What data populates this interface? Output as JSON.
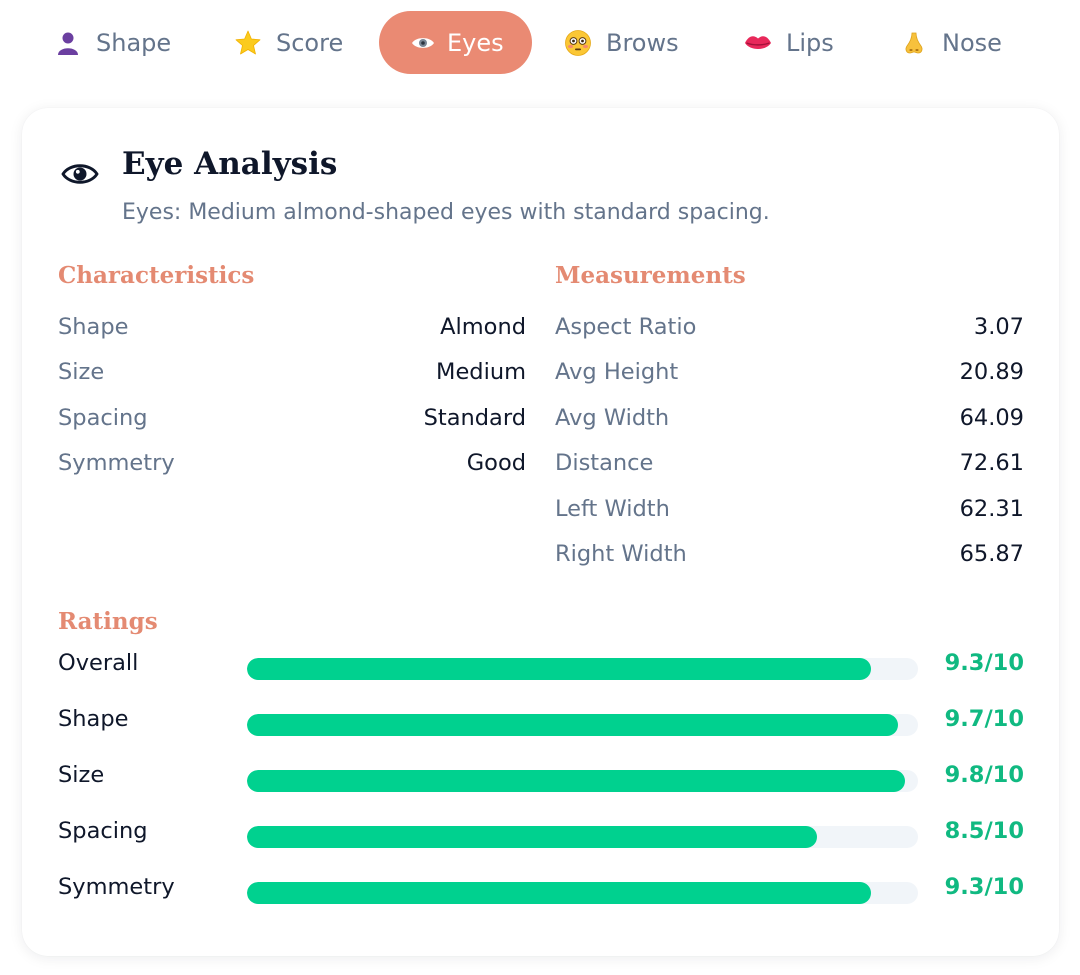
{
  "tabs": [
    {
      "label": "Shape",
      "icon": "person-silhouette-icon",
      "active": false
    },
    {
      "label": "Score",
      "icon": "star-icon",
      "active": false
    },
    {
      "label": "Eyes",
      "icon": "eye-icon",
      "active": true
    },
    {
      "label": "Brows",
      "icon": "flushed-face-icon",
      "active": false
    },
    {
      "label": "Lips",
      "icon": "lips-icon",
      "active": false
    },
    {
      "label": "Nose",
      "icon": "nose-icon",
      "active": false
    }
  ],
  "card": {
    "icon": "eye-icon",
    "title": "Eye Analysis",
    "subtitle": "Eyes: Medium almond-shaped eyes with standard spacing."
  },
  "characteristics": {
    "title": "Characteristics",
    "items": [
      {
        "label": "Shape",
        "value": "Almond"
      },
      {
        "label": "Size",
        "value": "Medium"
      },
      {
        "label": "Spacing",
        "value": "Standard"
      },
      {
        "label": "Symmetry",
        "value": "Good"
      }
    ]
  },
  "measurements": {
    "title": "Measurements",
    "items": [
      {
        "label": "Aspect Ratio",
        "value": "3.07"
      },
      {
        "label": "Avg Height",
        "value": "20.89"
      },
      {
        "label": "Avg Width",
        "value": "64.09"
      },
      {
        "label": "Distance",
        "value": "72.61"
      },
      {
        "label": "Left Width",
        "value": "62.31"
      },
      {
        "label": "Right Width",
        "value": "65.87"
      }
    ]
  },
  "ratings": {
    "title": "Ratings",
    "max": 10,
    "items": [
      {
        "label": "Overall",
        "score": 9.3,
        "display": "9.3/10"
      },
      {
        "label": "Shape",
        "score": 9.7,
        "display": "9.7/10"
      },
      {
        "label": "Size",
        "score": 9.8,
        "display": "9.8/10"
      },
      {
        "label": "Spacing",
        "score": 8.5,
        "display": "8.5/10"
      },
      {
        "label": "Symmetry",
        "score": 9.3,
        "display": "9.3/10"
      }
    ]
  },
  "colors": {
    "accent": "#ea8a73",
    "section_title": "#e48a72",
    "bar_fill": "#00d18f",
    "bar_track": "#f1f5f9",
    "score_text": "#10b981",
    "muted_text": "#64748b",
    "dark_text": "#0f172a"
  }
}
